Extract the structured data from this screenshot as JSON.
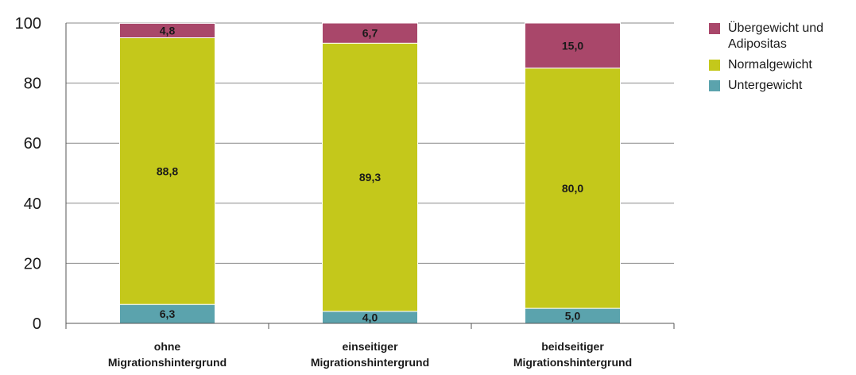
{
  "chart_data": {
    "type": "bar",
    "stacked": true,
    "orientation": "vertical",
    "categories": [
      [
        "ohne",
        "Migrationshintergrund"
      ],
      [
        "einseitiger",
        "Migrationshintergrund"
      ],
      [
        "beidseitiger",
        "Migrationshintergrund"
      ]
    ],
    "series": [
      {
        "name": "Untergewicht",
        "color": "#5ba3ad",
        "values": [
          6.3,
          4.0,
          5.0
        ],
        "labels": [
          "6,3",
          "4,0",
          "5,0"
        ]
      },
      {
        "name": "Normalgewicht",
        "color": "#c4c81b",
        "values": [
          88.8,
          89.3,
          80.0
        ],
        "labels": [
          "88,8",
          "89,3",
          "80,0"
        ]
      },
      {
        "name": "Übergewicht und Adipositas",
        "color": "#a9476a",
        "values": [
          4.8,
          6.7,
          15.0
        ],
        "labels": [
          "4,8",
          "6,7",
          "15,0"
        ]
      }
    ],
    "legend_order": [
      "Übergewicht und Adipositas",
      "Normalgewicht",
      "Untergewicht"
    ],
    "y_ticks": [
      0,
      20,
      40,
      60,
      80,
      100
    ],
    "ylim": [
      0,
      100
    ],
    "grid": true,
    "legend_position": "right"
  }
}
